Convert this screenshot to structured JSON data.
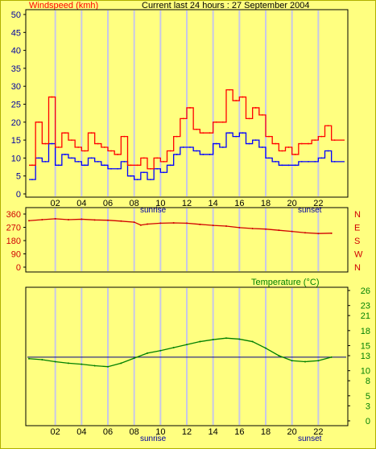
{
  "header": {
    "left_label": "Windspeed (kmh)",
    "title": "Current last 24 hours : 27 September 2004"
  },
  "colors": {
    "background": "#ffff80",
    "plot_bg": "#ffff80",
    "grid": "#c8c8e8",
    "gust": "#ff0000",
    "average": "#0000ff",
    "direction": "#d00000",
    "temperature": "#008000",
    "baseline": "#000080",
    "label_red": "#ff0000",
    "label_blue": "#0000a0",
    "label_green": "#008000",
    "frame": "#000000"
  },
  "x_ticks": [
    "02",
    "04",
    "06",
    "08",
    "10",
    "12",
    "14",
    "16",
    "18",
    "20",
    "22"
  ],
  "sun_labels": {
    "sunrise": "sunrise",
    "sunset": "sunset"
  },
  "chart_data": [
    {
      "type": "line",
      "title": "Windspeed (kmh)",
      "xlabel": "",
      "ylabel": "",
      "xlim": [
        0,
        24
      ],
      "ylim": [
        0,
        50
      ],
      "yticks": [
        0,
        5,
        10,
        15,
        20,
        25,
        30,
        35,
        40,
        45,
        50
      ],
      "x": [
        0,
        0.5,
        1,
        1.5,
        2,
        2.5,
        3,
        3.5,
        4,
        4.5,
        5,
        5.5,
        6,
        6.5,
        7,
        7.5,
        8,
        8.5,
        9,
        9.5,
        10,
        10.5,
        11,
        11.5,
        12,
        12.5,
        13,
        13.5,
        14,
        14.5,
        15,
        15.5,
        16,
        16.5,
        17,
        17.5,
        18,
        18.5,
        19,
        19.5,
        20,
        20.5,
        21,
        21.5,
        22,
        22.5,
        23
      ],
      "series": [
        {
          "name": "gust",
          "color": "#ff0000",
          "values": [
            8,
            20,
            14,
            27,
            13,
            17,
            15,
            13,
            12,
            17,
            14,
            13,
            12,
            11,
            16,
            8,
            8,
            10,
            7,
            10,
            9,
            12,
            16,
            21,
            24,
            18,
            17,
            17,
            20,
            20,
            29,
            26,
            27,
            21,
            24,
            22,
            16,
            14,
            12,
            13,
            11,
            14,
            14,
            15,
            16,
            19,
            15
          ]
        },
        {
          "name": "average",
          "color": "#0000ff",
          "values": [
            4,
            10,
            9,
            14,
            8,
            11,
            10,
            9,
            8,
            10,
            9,
            8,
            7,
            7,
            9,
            5,
            4,
            6,
            4,
            7,
            6,
            8,
            11,
            13,
            13,
            12,
            11,
            11,
            14,
            13,
            17,
            16,
            17,
            14,
            15,
            13,
            10,
            9,
            8,
            8,
            8,
            9,
            9,
            9,
            10,
            12,
            9
          ]
        }
      ]
    },
    {
      "type": "line",
      "title": "",
      "xlim": [
        0,
        24
      ],
      "ylim": [
        0,
        360
      ],
      "yticks": [
        0,
        90,
        180,
        270,
        360
      ],
      "direction_labels": [
        "N",
        "W",
        "S",
        "E",
        "N"
      ],
      "x": [
        0,
        1,
        2,
        3,
        4,
        5,
        6,
        7,
        8,
        8.5,
        9,
        10,
        11,
        12,
        13,
        14,
        15,
        16,
        17,
        18,
        19,
        20,
        21,
        22,
        23
      ],
      "series": [
        {
          "name": "",
          "color": "#d00000",
          "values": [
            315,
            322,
            328,
            322,
            325,
            320,
            318,
            312,
            305,
            285,
            292,
            298,
            300,
            298,
            290,
            283,
            278,
            268,
            262,
            258,
            250,
            242,
            233,
            228,
            230
          ]
        }
      ]
    },
    {
      "type": "line",
      "title": "Temperature (°C)",
      "xlim": [
        0,
        24
      ],
      "ylim": [
        0,
        26
      ],
      "yticks": [
        0,
        3,
        5,
        8,
        10,
        13,
        15,
        18,
        21,
        23,
        26
      ],
      "baseline": 12.7,
      "x": [
        0,
        1,
        2,
        3,
        4,
        5,
        6,
        7,
        8,
        9,
        10,
        11,
        12,
        13,
        14,
        15,
        16,
        17,
        18,
        19,
        20,
        21,
        22,
        23
      ],
      "series": [
        {
          "name": "",
          "color": "#008000",
          "values": [
            12.4,
            12.2,
            11.8,
            11.5,
            11.3,
            11.0,
            10.8,
            11.5,
            12.5,
            13.5,
            14.0,
            14.6,
            15.2,
            15.8,
            16.2,
            16.5,
            16.3,
            15.8,
            14.5,
            13.0,
            12.0,
            11.8,
            12.0,
            12.7
          ]
        }
      ]
    }
  ]
}
